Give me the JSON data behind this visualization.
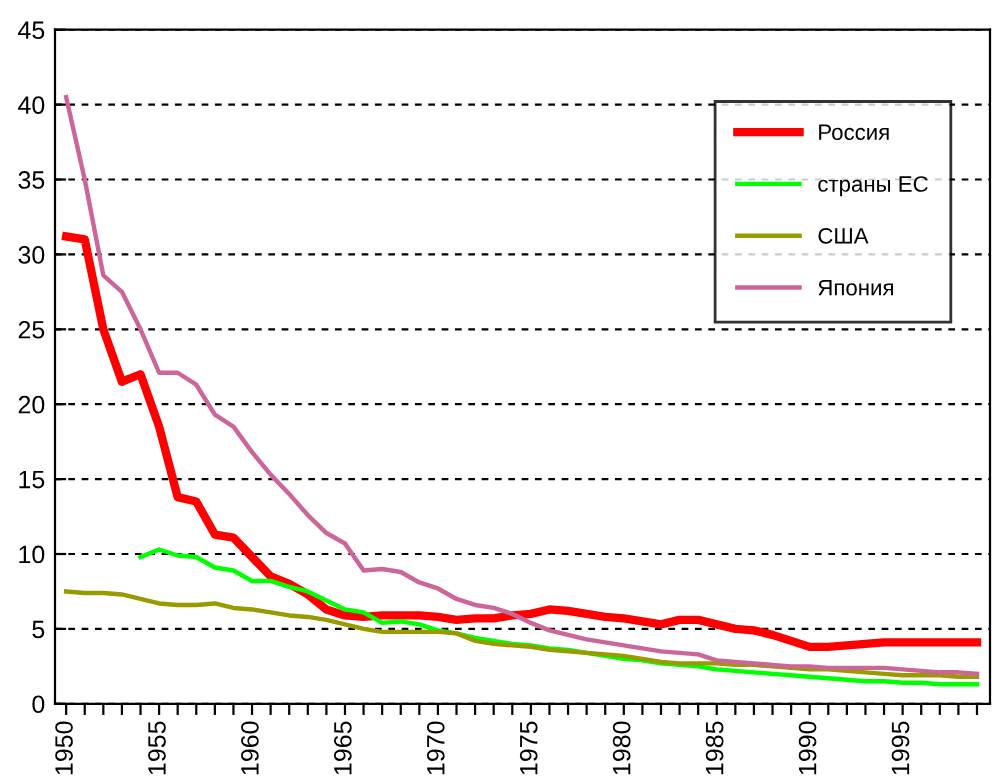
{
  "chart_data": {
    "type": "line",
    "x": [
      1950,
      1951,
      1952,
      1953,
      1954,
      1955,
      1956,
      1957,
      1958,
      1959,
      1960,
      1961,
      1962,
      1963,
      1964,
      1965,
      1966,
      1967,
      1968,
      1969,
      1970,
      1971,
      1972,
      1973,
      1974,
      1975,
      1976,
      1977,
      1978,
      1979,
      1980,
      1981,
      1982,
      1983,
      1984,
      1985,
      1986,
      1987,
      1988,
      1989,
      1990,
      1991,
      1992,
      1993,
      1994,
      1995,
      1996,
      1997,
      1998,
      1999
    ],
    "series": [
      {
        "name": "Россия",
        "color": "#ff0000",
        "values": [
          31.2,
          31.0,
          25.0,
          21.5,
          22.0,
          18.5,
          13.8,
          13.5,
          11.3,
          11.1,
          9.8,
          8.5,
          8.0,
          7.3,
          6.3,
          5.9,
          5.8,
          5.9,
          5.9,
          5.9,
          5.8,
          5.6,
          5.7,
          5.7,
          5.9,
          6.0,
          6.3,
          6.2,
          6.0,
          5.8,
          5.7,
          5.5,
          5.3,
          5.6,
          5.6,
          5.3,
          5.0,
          4.9,
          4.6,
          4.2,
          3.8,
          3.8,
          3.9,
          4.0,
          4.1,
          4.1,
          4.1,
          4.1,
          4.1,
          4.1
        ]
      },
      {
        "name": "страны ЕС",
        "color": "#00ff00",
        "values": [
          null,
          null,
          null,
          null,
          9.8,
          10.3,
          9.9,
          9.8,
          9.1,
          8.9,
          8.2,
          8.2,
          7.8,
          7.5,
          6.9,
          6.3,
          6.1,
          5.4,
          5.5,
          5.3,
          4.9,
          4.7,
          4.4,
          4.2,
          4.0,
          3.9,
          3.7,
          3.6,
          3.4,
          3.2,
          3.0,
          2.9,
          2.7,
          2.6,
          2.5,
          2.3,
          2.2,
          2.1,
          2.0,
          1.9,
          1.8,
          1.7,
          1.6,
          1.5,
          1.5,
          1.4,
          1.4,
          1.3,
          1.3,
          1.3
        ]
      },
      {
        "name": "США",
        "color": "#999900",
        "values": [
          7.5,
          7.4,
          7.4,
          7.3,
          7.0,
          6.7,
          6.6,
          6.6,
          6.7,
          6.4,
          6.3,
          6.1,
          5.9,
          5.8,
          5.6,
          5.3,
          5.0,
          4.8,
          4.8,
          4.8,
          4.8,
          4.7,
          4.2,
          4.0,
          3.9,
          3.8,
          3.6,
          3.5,
          3.4,
          3.3,
          3.2,
          3.0,
          2.8,
          2.7,
          2.7,
          2.7,
          2.6,
          2.6,
          2.5,
          2.4,
          2.3,
          2.3,
          2.2,
          2.1,
          2.0,
          1.9,
          1.9,
          1.9,
          1.8,
          1.8
        ]
      },
      {
        "name": "Япония",
        "color": "#cc6699",
        "values": [
          40.5,
          35.0,
          28.6,
          27.5,
          25.0,
          22.1,
          22.1,
          21.3,
          19.3,
          18.5,
          16.8,
          15.3,
          14.0,
          12.6,
          11.4,
          10.7,
          8.9,
          9.0,
          8.8,
          8.1,
          7.7,
          7.0,
          6.6,
          6.4,
          6.0,
          5.4,
          4.9,
          4.6,
          4.3,
          4.1,
          3.9,
          3.7,
          3.5,
          3.4,
          3.3,
          2.9,
          2.8,
          2.7,
          2.6,
          2.5,
          2.5,
          2.4,
          2.4,
          2.4,
          2.4,
          2.3,
          2.2,
          2.1,
          2.1,
          2.0
        ]
      }
    ],
    "xlim": [
      1949.4,
      1999.7
    ],
    "xticks": [
      1950,
      {
        "value": 1951,
        "label": null
      },
      {
        "value": 1952,
        "label": null
      },
      {
        "value": 1953,
        "label": null
      },
      {
        "value": 1954,
        "label": null
      },
      1955,
      {
        "value": 1956,
        "label": null
      },
      {
        "value": 1957,
        "label": null
      },
      {
        "value": 1958,
        "label": null
      },
      {
        "value": 1959,
        "label": null
      },
      1960,
      {
        "value": 1961,
        "label": null
      },
      {
        "value": 1962,
        "label": null
      },
      {
        "value": 1963,
        "label": null
      },
      {
        "value": 1964,
        "label": null
      },
      1965,
      {
        "value": 1966,
        "label": null
      },
      {
        "value": 1967,
        "label": null
      },
      {
        "value": 1968,
        "label": null
      },
      {
        "value": 1969,
        "label": null
      },
      1970,
      {
        "value": 1971,
        "label": null
      },
      {
        "value": 1972,
        "label": null
      },
      {
        "value": 1973,
        "label": null
      },
      {
        "value": 1974,
        "label": null
      },
      1975,
      {
        "value": 1976,
        "label": null
      },
      {
        "value": 1977,
        "label": null
      },
      {
        "value": 1978,
        "label": null
      },
      {
        "value": 1979,
        "label": null
      },
      1980,
      {
        "value": 1981,
        "label": null
      },
      {
        "value": 1982,
        "label": null
      },
      {
        "value": 1983,
        "label": null
      },
      {
        "value": 1984,
        "label": null
      },
      1985,
      {
        "value": 1986,
        "label": null
      },
      {
        "value": 1987,
        "label": null
      },
      {
        "value": 1988,
        "label": null
      },
      {
        "value": 1989,
        "label": null
      },
      1990,
      {
        "value": 1991,
        "label": null
      },
      {
        "value": 1992,
        "label": null
      },
      {
        "value": 1993,
        "label": null
      },
      {
        "value": 1994,
        "label": null
      },
      1995,
      {
        "value": 1996,
        "label": null
      },
      {
        "value": 1997,
        "label": null
      },
      {
        "value": 1998,
        "label": null
      },
      {
        "value": 1999,
        "label": null
      }
    ],
    "ylim": [
      0,
      45
    ],
    "yticks": [
      0,
      5,
      10,
      15,
      20,
      25,
      30,
      35,
      40,
      45
    ],
    "grid": "y",
    "legend": "top right",
    "marker": "none",
    "line_style": "solid"
  }
}
